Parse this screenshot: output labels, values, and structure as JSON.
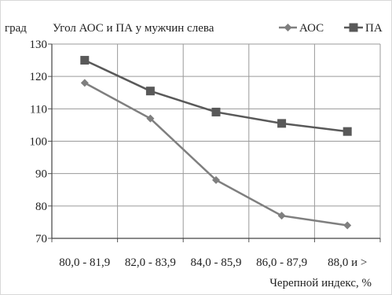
{
  "chart_data": {
    "type": "line",
    "title": "Угол АОС и ПА у мужчин слева",
    "ylabel": "град",
    "xlabel": "Черепной индекс, %",
    "categories": [
      "80,0 - 81,9",
      "82,0 - 83,9",
      "84,0 - 85,9",
      "86,0 - 87,9",
      "88,0 и >"
    ],
    "ylim": [
      70,
      130
    ],
    "yticks": [
      70,
      80,
      90,
      100,
      110,
      120,
      130
    ],
    "grid": true,
    "legend_position": "top-right",
    "series": [
      {
        "name": "АОС",
        "marker": "diamond",
        "color": "#7f7f7f",
        "values": [
          118,
          107,
          88,
          77,
          74
        ]
      },
      {
        "name": "ПА",
        "marker": "square",
        "color": "#595959",
        "values": [
          125,
          115.5,
          109,
          105.5,
          103
        ]
      }
    ]
  }
}
